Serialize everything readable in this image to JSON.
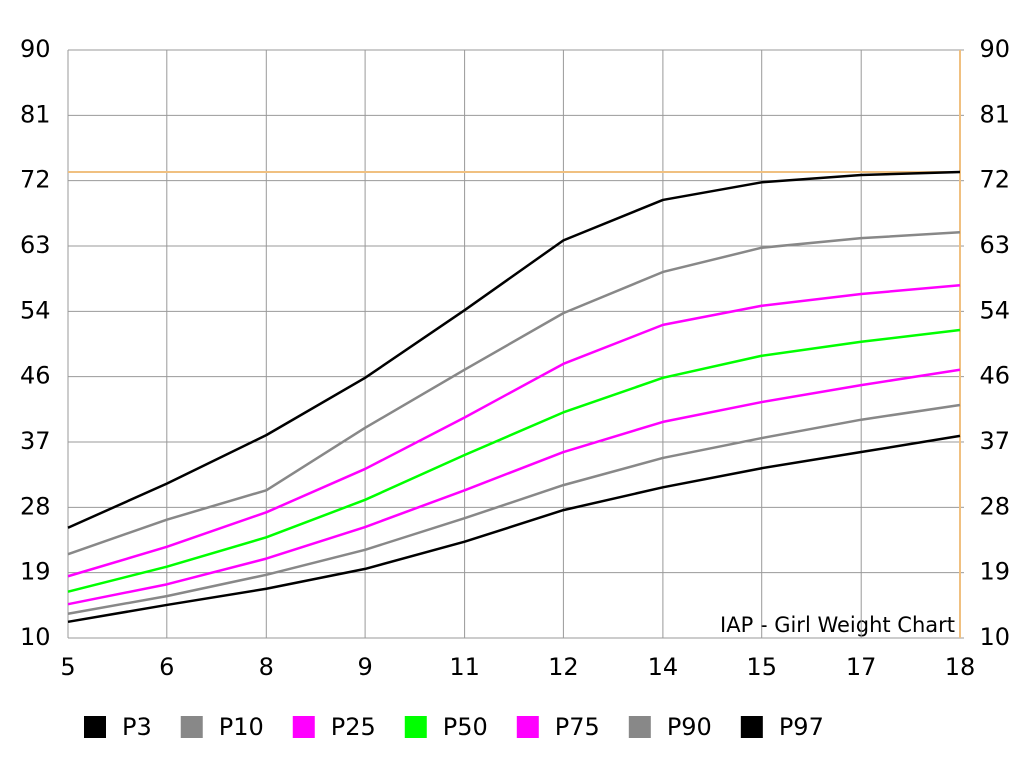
{
  "chart_data": {
    "type": "line",
    "annotation": "IAP - Girl Weight Chart",
    "x": [
      5,
      6.44,
      7.89,
      9.33,
      10.78,
      12.22,
      13.67,
      15.11,
      16.56,
      18
    ],
    "xlim": [
      5,
      18
    ],
    "xticks": [
      5,
      {
        "value": 6.44,
        "label": "6"
      },
      {
        "value": 7.89,
        "label": "8"
      },
      {
        "value": 9.33,
        "label": "9"
      },
      {
        "value": 10.78,
        "label": "11"
      },
      {
        "value": 12.22,
        "label": "12"
      },
      {
        "value": 13.67,
        "label": "14"
      },
      {
        "value": 15.11,
        "label": "15"
      },
      {
        "value": 16.56,
        "label": "17"
      },
      18
    ],
    "ylim": [
      10,
      90
    ],
    "yticks": [
      10,
      {
        "value": 18.89,
        "label": "19"
      },
      {
        "value": 27.78,
        "label": "28"
      },
      {
        "value": 36.67,
        "label": "37"
      },
      {
        "value": 45.56,
        "label": "46"
      },
      {
        "value": 54.44,
        "label": "54"
      },
      {
        "value": 63.33,
        "label": "63"
      },
      {
        "value": 72.22,
        "label": "72"
      },
      {
        "value": 81.11,
        "label": "81"
      },
      90
    ],
    "y2lim": [
      10,
      90
    ],
    "y2ticks": [
      10,
      {
        "value": 18.89,
        "label": "19"
      },
      {
        "value": 27.78,
        "label": "28"
      },
      {
        "value": 36.67,
        "label": "37"
      },
      {
        "value": 45.56,
        "label": "46"
      },
      {
        "value": 54.44,
        "label": "54"
      },
      {
        "value": 63.33,
        "label": "63"
      },
      {
        "value": 72.22,
        "label": "72"
      },
      {
        "value": 81.11,
        "label": "81"
      },
      90
    ],
    "reference_line": {
      "value": 73.4,
      "color": "#f0c080"
    },
    "grid": true,
    "legend": "bottom",
    "series": [
      {
        "name": "P3",
        "color": "#000000",
        "values": [
          12.2,
          14.5,
          16.7,
          19.4,
          23.1,
          27.4,
          30.5,
          33.1,
          35.3,
          37.5
        ]
      },
      {
        "name": "P10",
        "color": "#888888",
        "values": [
          13.3,
          15.7,
          18.6,
          22.0,
          26.3,
          30.8,
          34.5,
          37.2,
          39.7,
          41.7
        ]
      },
      {
        "name": "P25",
        "color": "#ff00ff",
        "values": [
          14.6,
          17.3,
          20.8,
          25.1,
          30.1,
          35.3,
          39.4,
          42.1,
          44.4,
          46.5
        ]
      },
      {
        "name": "P50",
        "color": "#00ff00",
        "values": [
          16.3,
          19.7,
          23.7,
          28.8,
          34.9,
          40.7,
          45.4,
          48.4,
          50.3,
          51.9
        ]
      },
      {
        "name": "P75",
        "color": "#ff00ff",
        "values": [
          18.4,
          22.4,
          27.1,
          33.0,
          40.0,
          47.3,
          52.6,
          55.2,
          56.8,
          58.0
        ]
      },
      {
        "name": "P90",
        "color": "#888888",
        "values": [
          21.4,
          26.1,
          30.1,
          38.6,
          46.5,
          54.2,
          59.8,
          63.1,
          64.4,
          65.2
        ]
      },
      {
        "name": "P97",
        "color": "#000000",
        "values": [
          25.0,
          31.0,
          37.6,
          45.4,
          54.6,
          64.1,
          69.6,
          72.0,
          73.0,
          73.4
        ]
      }
    ]
  }
}
